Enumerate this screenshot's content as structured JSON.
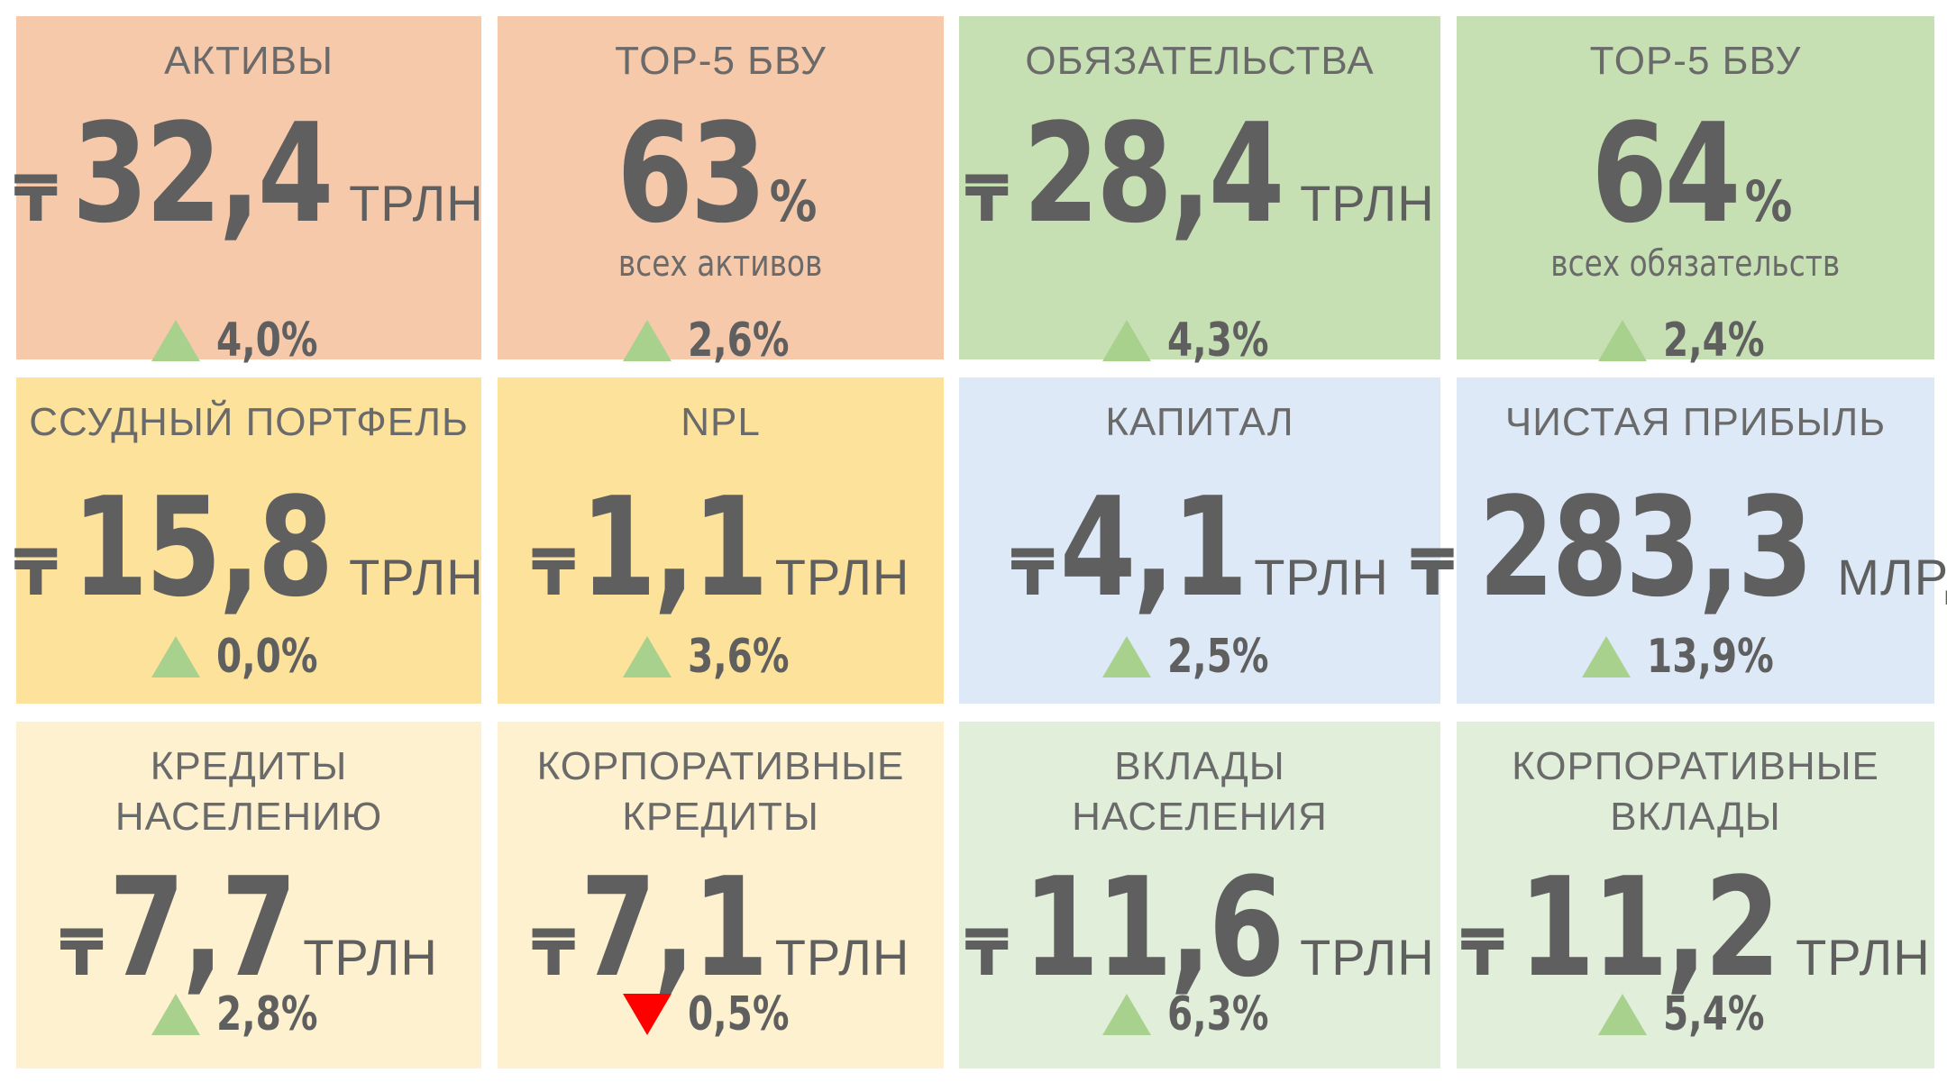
{
  "colors": {
    "peach": "#f6c9ab",
    "green": "#c6e0b4",
    "yellow": "#fde29b",
    "blue": "#dde9f6",
    "light_yellow": "#fdf1cf",
    "light_green": "#e1efda",
    "up": "#a9d18e",
    "down": "#ff0000",
    "text": "#5f5f5f"
  },
  "tiles": [
    {
      "title": [
        "АКТИВЫ"
      ],
      "currency": "₸",
      "value": "32,4",
      "unit": "ТРЛН",
      "direction": "up",
      "change": "4,0%"
    },
    {
      "title": [
        "TOP-5 БВУ"
      ],
      "value": "63",
      "value_suffix": "%",
      "subtitle": "всех активов",
      "direction": "up",
      "change": "2,6%"
    },
    {
      "title": [
        "ОБЯЗАТЕЛЬСТВА"
      ],
      "currency": "₸",
      "value": "28,4",
      "unit": "ТРЛН",
      "direction": "up",
      "change": "4,3%"
    },
    {
      "title": [
        "TOP-5 БВУ"
      ],
      "value": "64",
      "value_suffix": "%",
      "subtitle": "всех обязательств",
      "direction": "up",
      "change": "2,4%"
    },
    {
      "title": [
        "ССУДНЫЙ ПОРТФЕЛЬ"
      ],
      "currency": "₸",
      "value": "15,8",
      "unit": "ТРЛН",
      "direction": "up",
      "change": "0,0%"
    },
    {
      "title": [
        "NPL"
      ],
      "currency": "₸",
      "value": "1,1",
      "unit": "ТРЛН",
      "direction": "up",
      "change": "3,6%"
    },
    {
      "title": [
        "КАПИТАЛ"
      ],
      "currency": "₸",
      "value": "4,1",
      "unit": "ТРЛН",
      "direction": "up",
      "change": "2,5%"
    },
    {
      "title": [
        "ЧИСТАЯ ПРИБЫЛЬ"
      ],
      "currency": "₸",
      "value": "283,3",
      "unit": "МЛРД",
      "direction": "up",
      "change": "13,9%"
    },
    {
      "title": [
        "КРЕДИТЫ",
        "НАСЕЛЕНИЮ"
      ],
      "currency": "₸",
      "value": "7,7",
      "unit": "ТРЛН",
      "direction": "up",
      "change": "2,8%"
    },
    {
      "title": [
        "КОРПОРАТИВНЫЕ",
        "КРЕДИТЫ"
      ],
      "currency": "₸",
      "value": "7,1",
      "unit": "ТРЛН",
      "direction": "down",
      "change": "0,5%"
    },
    {
      "title": [
        "ВКЛАДЫ",
        "НАСЕЛЕНИЯ"
      ],
      "currency": "₸",
      "value": "11,6",
      "unit": "ТРЛН",
      "direction": "up",
      "change": "6,3%"
    },
    {
      "title": [
        "КОРПОРАТИВНЫЕ",
        "ВКЛАДЫ"
      ],
      "currency": "₸",
      "value": "11,2",
      "unit": "ТРЛН",
      "direction": "up",
      "change": "5,4%"
    }
  ]
}
